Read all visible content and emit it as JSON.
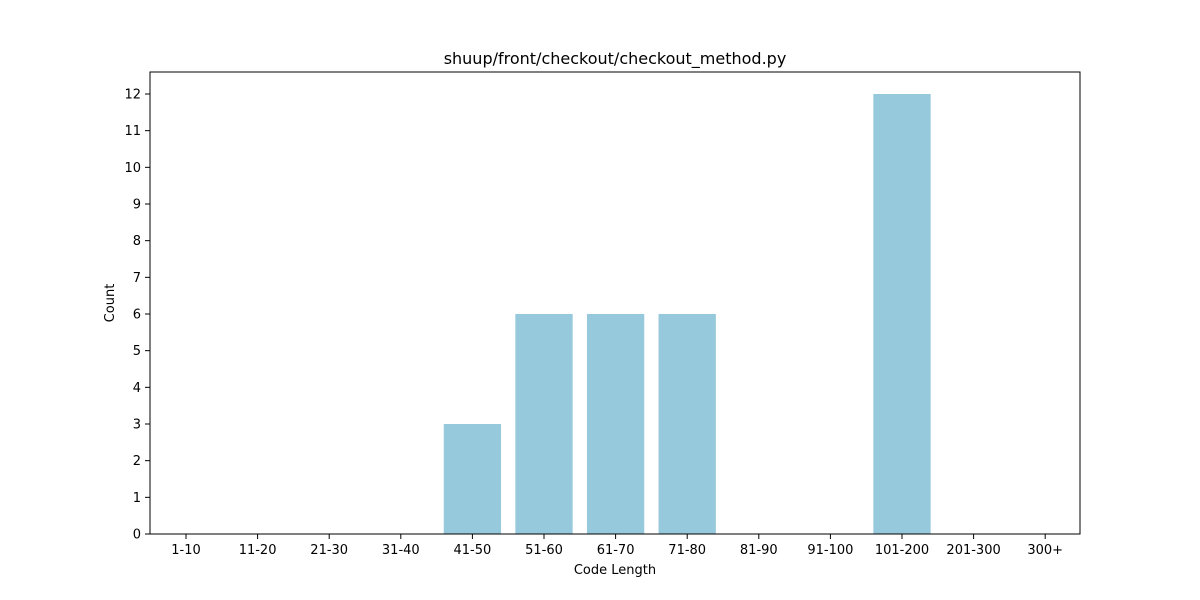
{
  "chart_data": {
    "type": "bar",
    "title": "shuup/front/checkout/checkout_method.py",
    "xlabel": "Code Length",
    "ylabel": "Count",
    "categories": [
      "1-10",
      "11-20",
      "21-30",
      "31-40",
      "41-50",
      "51-60",
      "61-70",
      "71-80",
      "81-90",
      "91-100",
      "101-200",
      "201-300",
      "300+"
    ],
    "values": [
      0,
      0,
      0,
      0,
      3,
      6,
      6,
      6,
      0,
      0,
      12,
      0,
      0
    ],
    "ylim": [
      0,
      12.6
    ],
    "yticks": [
      0,
      1,
      2,
      3,
      4,
      5,
      6,
      7,
      8,
      9,
      10,
      11,
      12
    ],
    "grid": false,
    "bar_color": "#96c9dc"
  }
}
